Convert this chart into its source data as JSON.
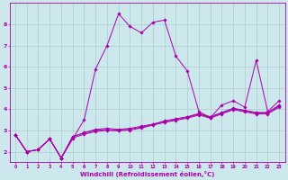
{
  "xlabel": "Windchill (Refroidissement éolien,°C)",
  "ylabel": "",
  "xlim": [
    -0.5,
    23.5
  ],
  "ylim": [
    1.5,
    9.0
  ],
  "yticks": [
    2,
    3,
    4,
    5,
    6,
    7,
    8
  ],
  "xticks": [
    0,
    1,
    2,
    3,
    4,
    5,
    6,
    7,
    8,
    9,
    10,
    11,
    12,
    13,
    14,
    15,
    16,
    17,
    18,
    19,
    20,
    21,
    22,
    23
  ],
  "bg_color": "#cce8ec",
  "grid_color": "#aacccc",
  "line_color": "#aa00aa",
  "lines": [
    [
      2.8,
      2.0,
      2.1,
      2.6,
      1.7,
      2.6,
      3.5,
      5.9,
      7.0,
      8.5,
      7.9,
      7.6,
      8.1,
      8.2,
      6.5,
      5.8,
      3.9,
      3.6,
      4.2,
      4.4,
      4.1,
      6.3,
      3.9,
      4.4
    ],
    [
      2.8,
      2.0,
      2.1,
      2.6,
      1.7,
      2.7,
      2.9,
      3.05,
      3.1,
      3.05,
      3.1,
      3.2,
      3.3,
      3.45,
      3.55,
      3.65,
      3.8,
      3.65,
      3.85,
      4.05,
      3.95,
      3.85,
      3.85,
      4.2
    ],
    [
      2.8,
      2.0,
      2.1,
      2.6,
      1.7,
      2.65,
      2.82,
      2.95,
      3.0,
      2.98,
      3.02,
      3.12,
      3.25,
      3.38,
      3.48,
      3.58,
      3.73,
      3.58,
      3.78,
      3.98,
      3.88,
      3.78,
      3.78,
      4.1
    ],
    [
      2.8,
      2.0,
      2.1,
      2.6,
      1.7,
      2.72,
      2.88,
      3.0,
      3.05,
      3.02,
      3.06,
      3.16,
      3.28,
      3.42,
      3.52,
      3.62,
      3.77,
      3.62,
      3.82,
      4.02,
      3.92,
      3.82,
      3.82,
      4.15
    ]
  ]
}
